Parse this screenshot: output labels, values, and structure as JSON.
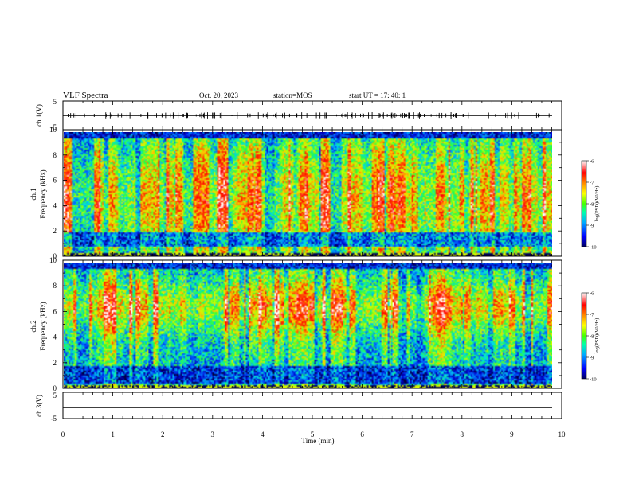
{
  "header": {
    "title": "VLF Spectra",
    "date": "Oct. 20, 2023",
    "station": "station=MOS",
    "start": "start  UT =   17: 40: 1"
  },
  "chart_data": [
    {
      "type": "line",
      "panel": "ch1-waveform",
      "ylabel": "ch.1(V)",
      "ylim": [
        -5,
        5
      ],
      "yticks": [
        "5",
        "-5"
      ],
      "xlim": [
        0,
        10
      ],
      "baseline_value": 0
    },
    {
      "type": "heatmap",
      "panel": "ch1-spectrogram",
      "ylabel_top": "ch.1",
      "ylabel": "Frequency (kHz)",
      "ylim": [
        0,
        10
      ],
      "yticks": [
        "0",
        "2",
        "4",
        "6",
        "8",
        "10"
      ],
      "xlim": [
        0,
        9.85
      ],
      "colorbar": {
        "label": "log(PSD)(V²/Hz)",
        "range": [
          -10,
          -6
        ],
        "ticks": [
          "-6",
          "-7",
          "-8",
          "-9",
          "-10"
        ],
        "colors": [
          "#000080",
          "#0000ff",
          "#00aaff",
          "#00ffaa",
          "#44ff00",
          "#ffff00",
          "#ff8800",
          "#ff0000",
          "#ffffff"
        ]
      }
    },
    {
      "type": "heatmap",
      "panel": "ch2-spectrogram",
      "ylabel_top": "ch.2",
      "ylabel": "Frequency (kHz)",
      "ylim": [
        0,
        10
      ],
      "yticks": [
        "0",
        "2",
        "4",
        "6",
        "8",
        "10"
      ],
      "xlim": [
        0,
        9.85
      ],
      "colorbar": {
        "label": "log(PSD)(V²/Hz)",
        "range": [
          -10,
          -6
        ],
        "ticks": [
          "-6",
          "-7",
          "-8",
          "-9",
          "-10"
        ],
        "colors": [
          "#000080",
          "#0000ff",
          "#00aaff",
          "#00ffaa",
          "#44ff00",
          "#ffff00",
          "#ff8800",
          "#ff0000",
          "#ffffff"
        ]
      }
    },
    {
      "type": "line",
      "panel": "ch3-waveform",
      "ylabel": "ch.3(V)",
      "ylim": [
        -5,
        5
      ],
      "yticks": [
        "5",
        "-5"
      ],
      "xlim": [
        0,
        10
      ],
      "baseline_value": -1
    }
  ],
  "x_axis": {
    "label": "Time (min)",
    "ticks": [
      "0",
      "1",
      "2",
      "3",
      "4",
      "5",
      "6",
      "7",
      "8",
      "9",
      "10"
    ]
  }
}
